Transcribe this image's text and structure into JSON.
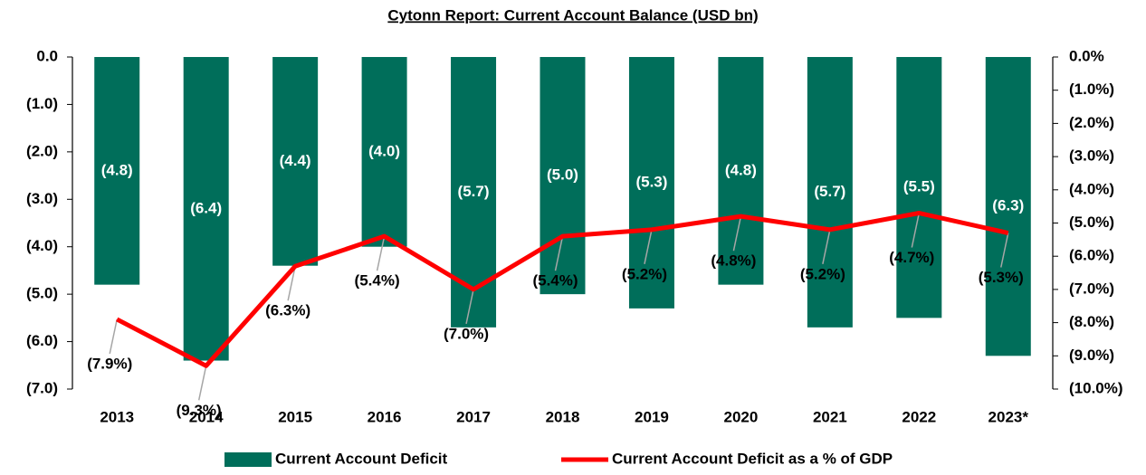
{
  "chart_data": {
    "type": "bar_line",
    "title": "Cytonn Report: Current Account Balance (USD bn)",
    "categories": [
      "2013",
      "2014",
      "2015",
      "2016",
      "2017",
      "2018",
      "2019",
      "2020",
      "2021",
      "2022",
      "2023*"
    ],
    "series": [
      {
        "name": "Current Account Deficit",
        "type": "bar",
        "color": "#006e5a",
        "values": [
          -4.8,
          -6.4,
          -4.4,
          -4.0,
          -5.7,
          -5.0,
          -5.3,
          -4.8,
          -5.7,
          -5.5,
          -6.3
        ],
        "value_labels": [
          "(4.8)",
          "(6.4)",
          "(4.4)",
          "(4.0)",
          "(5.7)",
          "(5.0)",
          "(5.3)",
          "(4.8)",
          "(5.7)",
          "(5.5)",
          "(6.3)"
        ]
      },
      {
        "name": "Current Account Deficit as a % of GDP",
        "type": "line",
        "axis": "y2",
        "color": "#ff0000",
        "values": [
          -7.9,
          -9.3,
          -6.3,
          -5.4,
          -7.0,
          -5.4,
          -5.2,
          -4.8,
          -5.2,
          -4.7,
          -5.3
        ],
        "value_labels": [
          "(7.9%)",
          "(9.3%)",
          "(6.3%)",
          "(5.4%)",
          "(7.0%)",
          "(5.4%)",
          "(5.2%)",
          "(4.8%)",
          "(5.2%)",
          "(4.7%)",
          "(5.3%)"
        ]
      }
    ],
    "ylim": [
      -7,
      0
    ],
    "yticks": [
      {
        "value": 0,
        "label": "0.0"
      },
      {
        "value": -1,
        "label": "(1.0)"
      },
      {
        "value": -2,
        "label": "(2.0)"
      },
      {
        "value": -3,
        "label": "(3.0)"
      },
      {
        "value": -4,
        "label": "(4.0)"
      },
      {
        "value": -5,
        "label": "(5.0)"
      },
      {
        "value": -6,
        "label": "(6.0)"
      },
      {
        "value": -7,
        "label": "(7.0)"
      }
    ],
    "y2lim": [
      -10,
      0
    ],
    "y2ticks": [
      {
        "value": 0,
        "label": "0.0%"
      },
      {
        "value": -1,
        "label": "(1.0%)"
      },
      {
        "value": -2,
        "label": "(2.0%)"
      },
      {
        "value": -3,
        "label": "(3.0%)"
      },
      {
        "value": -4,
        "label": "(4.0%)"
      },
      {
        "value": -5,
        "label": "(5.0%)"
      },
      {
        "value": -6,
        "label": "(6.0%)"
      },
      {
        "value": -7,
        "label": "(7.0%)"
      },
      {
        "value": -8,
        "label": "(8.0%)"
      },
      {
        "value": -9,
        "label": "(9.0%)"
      },
      {
        "value": -10,
        "label": "(10.0%)"
      }
    ],
    "legend": "bottom"
  }
}
